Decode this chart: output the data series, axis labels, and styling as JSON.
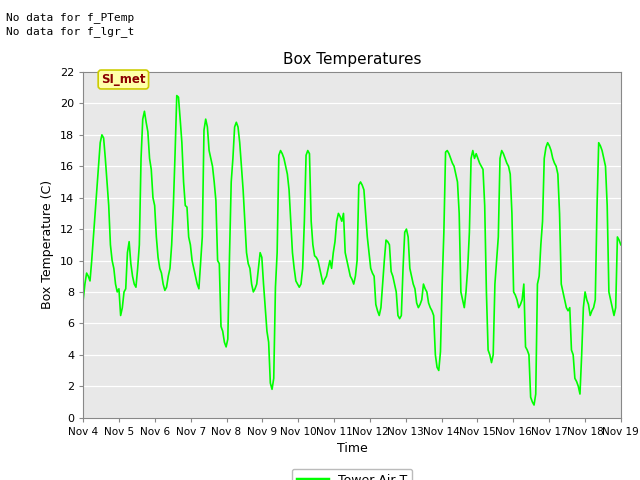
{
  "title": "Box Temperatures",
  "xlabel": "Time",
  "ylabel": "Box Temperature (C)",
  "line_color": "#00FF00",
  "line_width": 1.2,
  "bg_color": "#E8E8E8",
  "fig_bg_color": "#FFFFFF",
  "ylim": [
    0,
    22
  ],
  "yticks": [
    0,
    2,
    4,
    6,
    8,
    10,
    12,
    14,
    16,
    18,
    20,
    22
  ],
  "legend_label": "Tower Air T",
  "annotation_label": "SI_met",
  "x_tick_labels": [
    "Nov 4",
    "Nov 5",
    "Nov 6",
    "Nov 7",
    "Nov 8",
    "Nov 9",
    "Nov 10",
    "Nov 11",
    "Nov 12",
    "Nov 13",
    "Nov 14",
    "Nov 15",
    "Nov 16",
    "Nov 17",
    "Nov 18",
    "Nov 19"
  ],
  "x_positions": [
    0,
    1,
    2,
    3,
    4,
    5,
    6,
    7,
    8,
    9,
    10,
    11,
    12,
    13,
    14,
    15
  ],
  "y_data": [
    7.5,
    8.5,
    9.2,
    9.0,
    8.7,
    10.0,
    11.5,
    13.0,
    14.5,
    16.0,
    17.5,
    18.0,
    17.8,
    16.5,
    15.0,
    13.5,
    11.0,
    10.0,
    9.5,
    8.5,
    8.0,
    8.2,
    6.5,
    7.0,
    8.0,
    8.2,
    10.5,
    11.2,
    9.8,
    9.0,
    8.5,
    8.3,
    9.5,
    11.0,
    16.5,
    19.0,
    19.5,
    18.8,
    18.2,
    16.5,
    15.8,
    14.0,
    13.5,
    11.5,
    10.2,
    9.5,
    9.2,
    8.5,
    8.1,
    8.3,
    9.0,
    9.5,
    11.0,
    13.5,
    16.8,
    20.5,
    20.4,
    19.0,
    17.5,
    15.0,
    13.5,
    13.4,
    11.5,
    11.0,
    10.0,
    9.5,
    9.0,
    8.5,
    8.2,
    9.8,
    11.5,
    18.3,
    19.0,
    18.5,
    17.0,
    16.5,
    16.0,
    15.0,
    13.8,
    10.0,
    9.8,
    5.8,
    5.5,
    4.8,
    4.5,
    5.0,
    10.3,
    15.0,
    16.5,
    18.5,
    18.8,
    18.5,
    17.5,
    16.0,
    14.5,
    12.5,
    10.5,
    9.8,
    9.5,
    8.5,
    8.0,
    8.2,
    8.5,
    9.5,
    10.5,
    10.2,
    8.5,
    7.0,
    5.5,
    4.8,
    2.2,
    1.8,
    2.5,
    8.3,
    10.5,
    16.7,
    17.0,
    16.8,
    16.5,
    16.0,
    15.5,
    14.5,
    12.5,
    10.5,
    9.5,
    8.7,
    8.5,
    8.3,
    8.5,
    9.5,
    12.5,
    16.7,
    17.0,
    16.8,
    12.5,
    11.0,
    10.3,
    10.2,
    10.0,
    9.5,
    9.0,
    8.5,
    8.8,
    9.0,
    9.5,
    10.0,
    9.5,
    10.5,
    11.2,
    12.5,
    13.0,
    12.8,
    12.5,
    13.0,
    10.5,
    10.0,
    9.5,
    9.0,
    8.8,
    8.5,
    9.0,
    10.0,
    14.8,
    15.0,
    14.8,
    14.5,
    13.0,
    11.5,
    10.5,
    9.5,
    9.2,
    9.0,
    7.2,
    6.8,
    6.5,
    7.0,
    8.5,
    10.0,
    11.3,
    11.2,
    11.0,
    9.3,
    9.0,
    8.5,
    8.0,
    6.5,
    6.3,
    6.5,
    9.5,
    11.8,
    12.0,
    11.5,
    9.5,
    9.0,
    8.5,
    8.2,
    7.3,
    7.0,
    7.2,
    7.5,
    8.5,
    8.2,
    8.0,
    7.3,
    7.0,
    6.8,
    6.5,
    4.0,
    3.2,
    3.0,
    4.2,
    8.5,
    11.8,
    16.9,
    17.0,
    16.8,
    16.5,
    16.2,
    16.0,
    15.5,
    15.0,
    13.0,
    8.0,
    7.5,
    7.0,
    8.0,
    9.5,
    11.8,
    16.5,
    17.0,
    16.5,
    16.8,
    16.5,
    16.2,
    16.0,
    15.8,
    13.5,
    8.0,
    4.3,
    4.0,
    3.5,
    4.0,
    8.5,
    10.0,
    11.5,
    16.5,
    17.0,
    16.8,
    16.5,
    16.2,
    16.0,
    15.5,
    13.0,
    8.0,
    7.8,
    7.5,
    7.0,
    7.2,
    7.5,
    8.5,
    4.5,
    4.3,
    4.0,
    1.3,
    1.0,
    0.8,
    1.5,
    8.5,
    9.0,
    11.0,
    12.5,
    16.5,
    17.2,
    17.5,
    17.3,
    17.0,
    16.5,
    16.2,
    16.0,
    15.5,
    13.0,
    8.5,
    8.0,
    7.5,
    7.0,
    6.8,
    7.0,
    4.3,
    4.0,
    2.5,
    2.3,
    2.0,
    1.5,
    4.0,
    7.0,
    8.0,
    7.5,
    7.2,
    6.5,
    6.8,
    7.0,
    7.5,
    13.3,
    17.5,
    17.3,
    17.0,
    16.5,
    16.0,
    13.5,
    8.0,
    7.5,
    7.0,
    6.5,
    7.0,
    11.5,
    11.3,
    11.0
  ]
}
